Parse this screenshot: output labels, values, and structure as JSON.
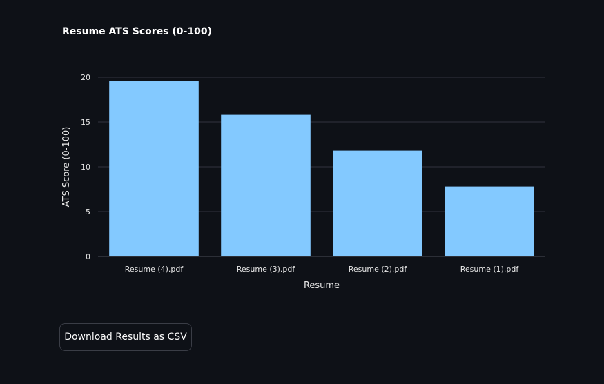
{
  "download_button": {
    "label": "Download Results as CSV"
  },
  "colors": {
    "background": "#0e1117",
    "bar": "#83c9ff",
    "grid": "#31333f"
  },
  "chart_data": {
    "type": "bar",
    "title": "Resume ATS Scores (0-100)",
    "xlabel": "Resume",
    "ylabel": "ATS Score (0-100)",
    "categories": [
      "Resume (4).pdf",
      "Resume (3).pdf",
      "Resume (2).pdf",
      "Resume (1).pdf"
    ],
    "values": [
      19.6,
      15.8,
      11.8,
      7.8
    ],
    "ylim": [
      0,
      20
    ],
    "yticks": [
      0,
      5,
      10,
      15,
      20
    ],
    "grid": true,
    "legend": "none"
  }
}
